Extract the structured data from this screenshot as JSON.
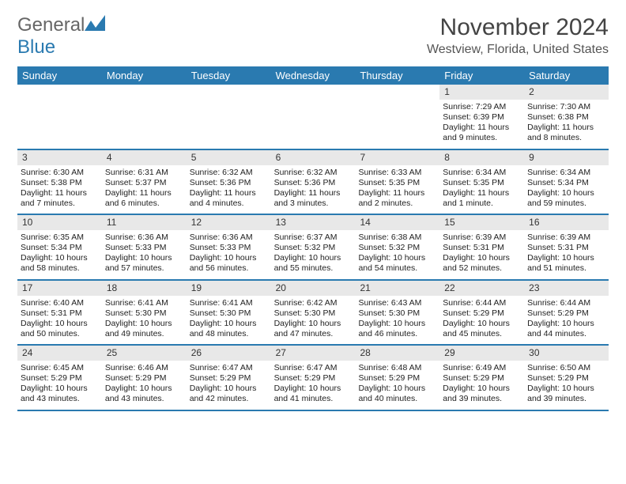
{
  "brand": {
    "word1": "General",
    "word2": "Blue"
  },
  "header": {
    "month_title": "November 2024",
    "location": "Westview, Florida, United States"
  },
  "colors": {
    "accent": "#2a7ab0",
    "header_text": "#ffffff",
    "daynum_bg": "#e8e8e8",
    "body_text": "#222222",
    "page_bg": "#ffffff"
  },
  "typography": {
    "month_title_fontsize": 30,
    "location_fontsize": 16,
    "weekday_fontsize": 13,
    "cell_fontsize": 10.5,
    "logo_fontsize": 24
  },
  "weekdays": [
    "Sunday",
    "Monday",
    "Tuesday",
    "Wednesday",
    "Thursday",
    "Friday",
    "Saturday"
  ],
  "weeks": [
    [
      null,
      null,
      null,
      null,
      null,
      {
        "day": "1",
        "sunrise": "Sunrise: 7:29 AM",
        "sunset": "Sunset: 6:39 PM",
        "daylight": "Daylight: 11 hours and 9 minutes."
      },
      {
        "day": "2",
        "sunrise": "Sunrise: 7:30 AM",
        "sunset": "Sunset: 6:38 PM",
        "daylight": "Daylight: 11 hours and 8 minutes."
      }
    ],
    [
      {
        "day": "3",
        "sunrise": "Sunrise: 6:30 AM",
        "sunset": "Sunset: 5:38 PM",
        "daylight": "Daylight: 11 hours and 7 minutes."
      },
      {
        "day": "4",
        "sunrise": "Sunrise: 6:31 AM",
        "sunset": "Sunset: 5:37 PM",
        "daylight": "Daylight: 11 hours and 6 minutes."
      },
      {
        "day": "5",
        "sunrise": "Sunrise: 6:32 AM",
        "sunset": "Sunset: 5:36 PM",
        "daylight": "Daylight: 11 hours and 4 minutes."
      },
      {
        "day": "6",
        "sunrise": "Sunrise: 6:32 AM",
        "sunset": "Sunset: 5:36 PM",
        "daylight": "Daylight: 11 hours and 3 minutes."
      },
      {
        "day": "7",
        "sunrise": "Sunrise: 6:33 AM",
        "sunset": "Sunset: 5:35 PM",
        "daylight": "Daylight: 11 hours and 2 minutes."
      },
      {
        "day": "8",
        "sunrise": "Sunrise: 6:34 AM",
        "sunset": "Sunset: 5:35 PM",
        "daylight": "Daylight: 11 hours and 1 minute."
      },
      {
        "day": "9",
        "sunrise": "Sunrise: 6:34 AM",
        "sunset": "Sunset: 5:34 PM",
        "daylight": "Daylight: 10 hours and 59 minutes."
      }
    ],
    [
      {
        "day": "10",
        "sunrise": "Sunrise: 6:35 AM",
        "sunset": "Sunset: 5:34 PM",
        "daylight": "Daylight: 10 hours and 58 minutes."
      },
      {
        "day": "11",
        "sunrise": "Sunrise: 6:36 AM",
        "sunset": "Sunset: 5:33 PM",
        "daylight": "Daylight: 10 hours and 57 minutes."
      },
      {
        "day": "12",
        "sunrise": "Sunrise: 6:36 AM",
        "sunset": "Sunset: 5:33 PM",
        "daylight": "Daylight: 10 hours and 56 minutes."
      },
      {
        "day": "13",
        "sunrise": "Sunrise: 6:37 AM",
        "sunset": "Sunset: 5:32 PM",
        "daylight": "Daylight: 10 hours and 55 minutes."
      },
      {
        "day": "14",
        "sunrise": "Sunrise: 6:38 AM",
        "sunset": "Sunset: 5:32 PM",
        "daylight": "Daylight: 10 hours and 54 minutes."
      },
      {
        "day": "15",
        "sunrise": "Sunrise: 6:39 AM",
        "sunset": "Sunset: 5:31 PM",
        "daylight": "Daylight: 10 hours and 52 minutes."
      },
      {
        "day": "16",
        "sunrise": "Sunrise: 6:39 AM",
        "sunset": "Sunset: 5:31 PM",
        "daylight": "Daylight: 10 hours and 51 minutes."
      }
    ],
    [
      {
        "day": "17",
        "sunrise": "Sunrise: 6:40 AM",
        "sunset": "Sunset: 5:31 PM",
        "daylight": "Daylight: 10 hours and 50 minutes."
      },
      {
        "day": "18",
        "sunrise": "Sunrise: 6:41 AM",
        "sunset": "Sunset: 5:30 PM",
        "daylight": "Daylight: 10 hours and 49 minutes."
      },
      {
        "day": "19",
        "sunrise": "Sunrise: 6:41 AM",
        "sunset": "Sunset: 5:30 PM",
        "daylight": "Daylight: 10 hours and 48 minutes."
      },
      {
        "day": "20",
        "sunrise": "Sunrise: 6:42 AM",
        "sunset": "Sunset: 5:30 PM",
        "daylight": "Daylight: 10 hours and 47 minutes."
      },
      {
        "day": "21",
        "sunrise": "Sunrise: 6:43 AM",
        "sunset": "Sunset: 5:30 PM",
        "daylight": "Daylight: 10 hours and 46 minutes."
      },
      {
        "day": "22",
        "sunrise": "Sunrise: 6:44 AM",
        "sunset": "Sunset: 5:29 PM",
        "daylight": "Daylight: 10 hours and 45 minutes."
      },
      {
        "day": "23",
        "sunrise": "Sunrise: 6:44 AM",
        "sunset": "Sunset: 5:29 PM",
        "daylight": "Daylight: 10 hours and 44 minutes."
      }
    ],
    [
      {
        "day": "24",
        "sunrise": "Sunrise: 6:45 AM",
        "sunset": "Sunset: 5:29 PM",
        "daylight": "Daylight: 10 hours and 43 minutes."
      },
      {
        "day": "25",
        "sunrise": "Sunrise: 6:46 AM",
        "sunset": "Sunset: 5:29 PM",
        "daylight": "Daylight: 10 hours and 43 minutes."
      },
      {
        "day": "26",
        "sunrise": "Sunrise: 6:47 AM",
        "sunset": "Sunset: 5:29 PM",
        "daylight": "Daylight: 10 hours and 42 minutes."
      },
      {
        "day": "27",
        "sunrise": "Sunrise: 6:47 AM",
        "sunset": "Sunset: 5:29 PM",
        "daylight": "Daylight: 10 hours and 41 minutes."
      },
      {
        "day": "28",
        "sunrise": "Sunrise: 6:48 AM",
        "sunset": "Sunset: 5:29 PM",
        "daylight": "Daylight: 10 hours and 40 minutes."
      },
      {
        "day": "29",
        "sunrise": "Sunrise: 6:49 AM",
        "sunset": "Sunset: 5:29 PM",
        "daylight": "Daylight: 10 hours and 39 minutes."
      },
      {
        "day": "30",
        "sunrise": "Sunrise: 6:50 AM",
        "sunset": "Sunset: 5:29 PM",
        "daylight": "Daylight: 10 hours and 39 minutes."
      }
    ]
  ]
}
